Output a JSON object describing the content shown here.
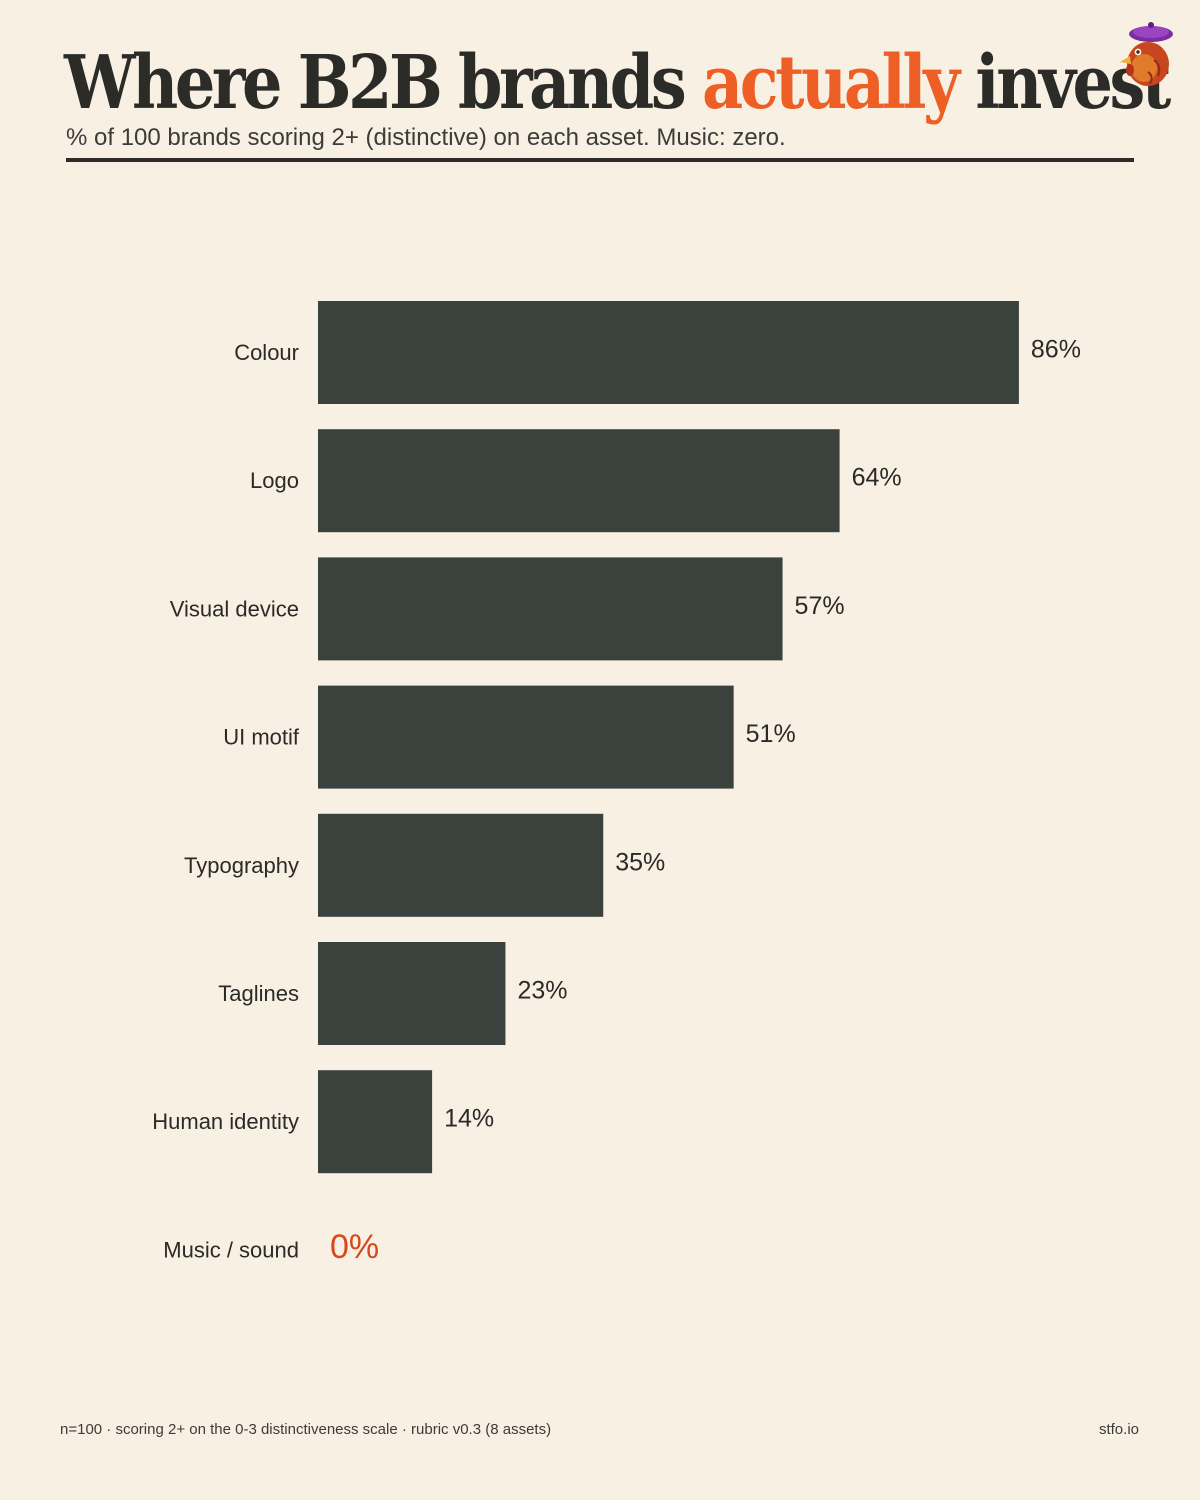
{
  "header": {
    "title_part1": "Where B2B brands ",
    "title_accent": "actually",
    "title_part2": " invest",
    "subtitle": "% of 100 brands scoring 2+ (distinctive) on each asset. Music: zero."
  },
  "colors": {
    "background": "#f9f0e4",
    "bar": "#3b413d",
    "accent": "#ee5f26",
    "zero_value": "#d9481c",
    "text": "#2a2a26"
  },
  "mascot": {
    "icon": "rooster-with-beret-icon"
  },
  "chart_data": {
    "type": "bar",
    "orientation": "horizontal",
    "categories": [
      "Colour",
      "Logo",
      "Visual device",
      "UI motif",
      "Typography",
      "Taglines",
      "Human identity",
      "Music / sound"
    ],
    "values": [
      86,
      64,
      57,
      51,
      35,
      23,
      14,
      0
    ],
    "value_labels": [
      "86%",
      "64%",
      "57%",
      "51%",
      "35%",
      "23%",
      "14%",
      "0%"
    ],
    "unit": "%",
    "xlim": [
      0,
      100
    ],
    "grid": false,
    "legend": "none"
  },
  "footer": {
    "note": "n=100 · scoring 2+ on the 0-3 distinctiveness scale · rubric v0.3 (8 assets)",
    "site": "stfo.io"
  }
}
